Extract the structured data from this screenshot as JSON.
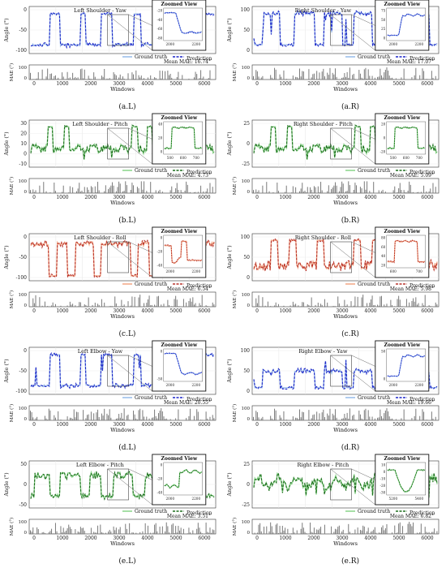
{
  "zoom_title": "Zoomed View",
  "legend_labels": {
    "ground_truth": "Ground truth",
    "prediction": "Prediction"
  },
  "ylabel_main": "Angle (°)",
  "ylabel_mae": "MAE (°)",
  "xlabel_mae": "Windows",
  "mae_ticks": [
    "0",
    "100"
  ],
  "x_ticks": [
    "0",
    "1000",
    "2000",
    "3000",
    "4000",
    "5000",
    "6000"
  ],
  "colors": {
    "yaw_gt": "#8fb6e8",
    "yaw_pred": "#1c25c8",
    "pitch_gt": "#7fd17f",
    "pitch_pred": "#1d6e1d",
    "roll_gt": "#f2a07a",
    "roll_pred": "#b8322a",
    "mae_bar": "#7a7a7a"
  },
  "chart_data": [
    {
      "id": "a.L",
      "type": "line",
      "title": "Left Shoulder - Yaw",
      "caption": "(a.L)",
      "color_key": "yaw",
      "yticks": [
        "0",
        "-50",
        "-100"
      ],
      "ylim": [
        -110,
        10
      ],
      "mean_mae": "Mean MAE: 16.74°",
      "zoom_xticks": [
        "2000",
        "2200"
      ],
      "zoom_yticks": [
        "-20",
        "-40",
        "-60",
        "-80"
      ],
      "zoom_ylim": [
        -85,
        5
      ],
      "pattern": "yawL",
      "zoom_pattern": "dropL"
    },
    {
      "id": "a.R",
      "type": "line",
      "title": "Right Shoulder - Yaw",
      "caption": "(a.R)",
      "color_key": "yaw",
      "yticks": [
        "100",
        "50",
        "0"
      ],
      "ylim": [
        -10,
        110
      ],
      "mean_mae": "Mean MAE: 17.07°",
      "zoom_xticks": [
        "2000",
        "2200"
      ],
      "zoom_yticks": [
        "75",
        "50",
        "25",
        "0"
      ],
      "zoom_ylim": [
        -5,
        90
      ],
      "pattern": "yawR",
      "zoom_pattern": "riseR"
    },
    {
      "id": "b.L",
      "type": "line",
      "title": "Left Shoulder - Pitch",
      "caption": "(b.L)",
      "color_key": "pitch",
      "yticks": [
        "30",
        "20",
        "10",
        "0",
        "-10"
      ],
      "ylim": [
        -15,
        38
      ],
      "mean_mae": "Mean MAE: 4.73°",
      "zoom_xticks": [
        "500",
        "600",
        "700"
      ],
      "zoom_yticks": [
        "40",
        "20",
        "0"
      ],
      "zoom_ylim": [
        -8,
        45
      ],
      "pattern": "pitchL",
      "zoom_pattern": "plateau"
    },
    {
      "id": "b.R",
      "type": "line",
      "title": "Right Shoulder - Pitch",
      "caption": "(b.R)",
      "color_key": "pitch",
      "yticks": [
        "25",
        "0",
        "-25"
      ],
      "ylim": [
        -30,
        35
      ],
      "mean_mae": "Mean MAE: 5.09°",
      "zoom_xticks": [
        "500",
        "600",
        "700"
      ],
      "zoom_yticks": [
        "20",
        "0",
        "-20"
      ],
      "zoom_ylim": [
        -28,
        30
      ],
      "pattern": "pitchR",
      "zoom_pattern": "plateau"
    },
    {
      "id": "c.L",
      "type": "line",
      "title": "Left Shoulder - Roll",
      "caption": "(c.L)",
      "color_key": "roll",
      "yticks": [
        "0",
        "-50",
        "-100"
      ],
      "ylim": [
        -105,
        15
      ],
      "mean_mae": "Mean MAE: 6.54°",
      "zoom_xticks": [
        "2000",
        "2200"
      ],
      "zoom_yticks": [
        "0",
        "-20",
        "-40"
      ],
      "zoom_ylim": [
        -50,
        10
      ],
      "pattern": "rollL",
      "zoom_pattern": "dipL"
    },
    {
      "id": "c.R",
      "type": "line",
      "title": "Right Shoulder - Roll",
      "caption": "(c.R)",
      "color_key": "roll",
      "yticks": [
        "100",
        "50",
        "0"
      ],
      "ylim": [
        -10,
        110
      ],
      "mean_mae": "Mean MAE: 5.98°",
      "zoom_xticks": [
        "600",
        "700"
      ],
      "zoom_yticks": [
        "80",
        "60",
        "40",
        "20"
      ],
      "zoom_ylim": [
        10,
        92
      ],
      "pattern": "rollR",
      "zoom_pattern": "plateau"
    },
    {
      "id": "d.L",
      "type": "line",
      "title": "Left Elbow - Yaw",
      "caption": "(d.L)",
      "color_key": "yaw",
      "yticks": [
        "0",
        "-50",
        "-100"
      ],
      "ylim": [
        -115,
        10
      ],
      "mean_mae": "Mean MAE: 20.55°",
      "zoom_xticks": [
        "2000",
        "2200"
      ],
      "zoom_yticks": [
        "0",
        "-50"
      ],
      "zoom_ylim": [
        -85,
        10
      ],
      "pattern": "elbL",
      "zoom_pattern": "dropL"
    },
    {
      "id": "d.R",
      "type": "line",
      "title": "Right Elbow - Yaw",
      "caption": "(d.R)",
      "color_key": "yaw",
      "yticks": [
        "100",
        "50",
        "0"
      ],
      "ylim": [
        -10,
        115
      ],
      "mean_mae": "Mean MAE: 19.66°",
      "zoom_xticks": [
        "2000",
        "2200"
      ],
      "zoom_yticks": [
        "50",
        "0"
      ],
      "zoom_ylim": [
        -5,
        85
      ],
      "pattern": "elbR",
      "zoom_pattern": "riseR"
    },
    {
      "id": "e.L",
      "type": "line",
      "title": "Left Elbow - Pitch",
      "caption": "(e.L)",
      "color_key": "pitch",
      "yticks": [
        "50",
        "0",
        "-50"
      ],
      "ylim": [
        -55,
        55
      ],
      "mean_mae": "Mean MAE: 3.51°",
      "zoom_xticks": [
        "2000",
        "2200"
      ],
      "zoom_yticks": [
        "0",
        "-20",
        "-40"
      ],
      "zoom_ylim": [
        -48,
        8
      ],
      "pattern": "epL",
      "zoom_pattern": "stepUp"
    },
    {
      "id": "e.R",
      "type": "line",
      "title": "Right Elbow - Pitch",
      "caption": "(e.R)",
      "color_key": "pitch",
      "yticks": [
        "25",
        "0",
        "-25"
      ],
      "ylim": [
        -32,
        32
      ],
      "mean_mae": "Mean MAE: 6.82°",
      "zoom_xticks": [
        "5200",
        "5400"
      ],
      "zoom_yticks": [
        "10",
        "0",
        "-10",
        "-20",
        "-30"
      ],
      "zoom_ylim": [
        -32,
        14
      ],
      "pattern": "epR",
      "zoom_pattern": "vDip"
    }
  ]
}
